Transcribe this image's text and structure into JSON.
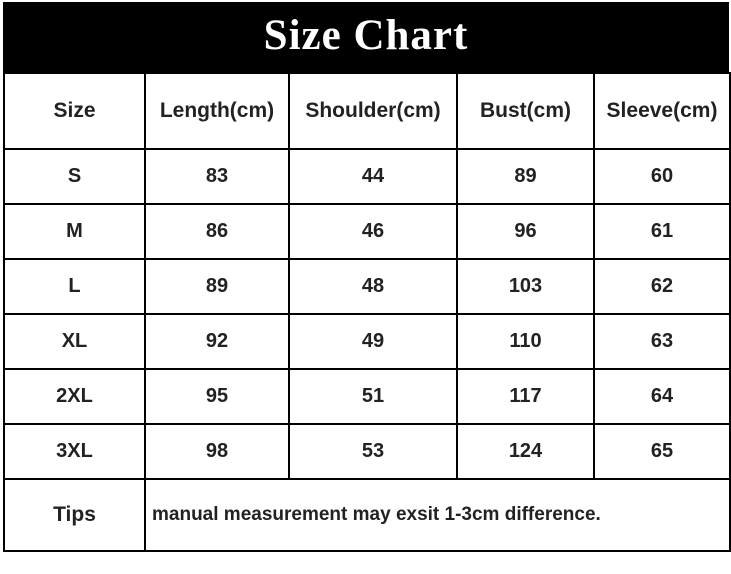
{
  "title": "Size Chart",
  "table": {
    "headers": [
      "Size",
      "Length(cm)",
      "Shoulder(cm)",
      "Bust(cm)",
      "Sleeve(cm)"
    ],
    "rows": [
      {
        "cells": [
          "S",
          "83",
          "44",
          "89",
          "60"
        ]
      },
      {
        "cells": [
          "M",
          "86",
          "46",
          "96",
          "61"
        ]
      },
      {
        "cells": [
          "L",
          "89",
          "48",
          "103",
          "62"
        ]
      },
      {
        "cells": [
          "XL",
          "92",
          "49",
          "110",
          "63"
        ]
      },
      {
        "cells": [
          "2XL",
          "95",
          "51",
          "117",
          "64"
        ]
      },
      {
        "cells": [
          "3XL",
          "98",
          "53",
          "124",
          "65"
        ]
      }
    ],
    "tips_label": "Tips",
    "tips_text": "manual measurement may exsit 1-3cm difference."
  },
  "colors": {
    "title_bar_bg": "#000000",
    "title_text": "#ffffff",
    "body_text": "#222222",
    "border": "#000000",
    "background": "#ffffff"
  },
  "chart_data": {
    "type": "table",
    "title": "Size Chart",
    "columns": [
      "Size",
      "Length(cm)",
      "Shoulder(cm)",
      "Bust(cm)",
      "Sleeve(cm)"
    ],
    "rows": [
      [
        "S",
        83,
        44,
        89,
        60
      ],
      [
        "M",
        86,
        46,
        96,
        61
      ],
      [
        "L",
        89,
        48,
        103,
        62
      ],
      [
        "XL",
        92,
        49,
        110,
        63
      ],
      [
        "2XL",
        95,
        51,
        117,
        64
      ],
      [
        "3XL",
        98,
        53,
        124,
        65
      ]
    ],
    "note": "manual measurement may exsit 1-3cm difference.",
    "layout_hints": {
      "title_style": "white serif text on black bar",
      "grid": "on",
      "all_text_bold": true,
      "note_row_label": "Tips"
    }
  }
}
